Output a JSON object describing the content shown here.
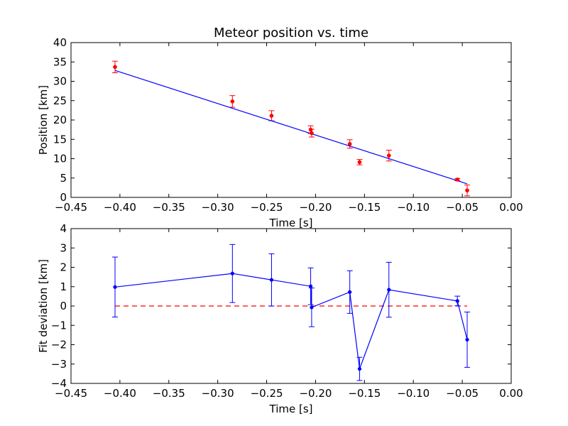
{
  "chart_data": [
    {
      "type": "scatter",
      "title": "Meteor position vs. time",
      "xlabel": "Time [s]",
      "ylabel": "Position [km]",
      "xlim": [
        -0.45,
        0.0
      ],
      "ylim": [
        0,
        40
      ],
      "xticks": [
        "−0.45",
        "−0.40",
        "−0.35",
        "−0.30",
        "−0.25",
        "−0.20",
        "−0.15",
        "−0.10",
        "−0.05",
        "0.00"
      ],
      "yticks": [
        "0",
        "5",
        "10",
        "15",
        "20",
        "25",
        "30",
        "35",
        "40"
      ],
      "points": {
        "x": [
          -0.405,
          -0.285,
          -0.245,
          -0.205,
          -0.204,
          -0.165,
          -0.155,
          -0.125,
          -0.055,
          -0.045
        ],
        "y": [
          33.7,
          24.8,
          21.1,
          17.5,
          16.6,
          13.8,
          9.1,
          10.8,
          4.6,
          1.8
        ],
        "err": [
          1.5,
          1.5,
          1.3,
          1.0,
          1.0,
          1.1,
          0.7,
          1.4,
          0.3,
          1.4
        ],
        "color": "#ff0000"
      },
      "fit": {
        "x": [
          -0.405,
          -0.045
        ],
        "y": [
          32.8,
          3.5
        ],
        "color": "#0000ff"
      }
    },
    {
      "type": "line",
      "xlabel": "Time [s]",
      "ylabel": "Fit deviation [km]",
      "xlim": [
        -0.45,
        0.0
      ],
      "ylim": [
        -4,
        4
      ],
      "xticks": [
        "−0.45",
        "−0.40",
        "−0.35",
        "−0.30",
        "−0.25",
        "−0.20",
        "−0.15",
        "−0.10",
        "−0.05",
        "0.00"
      ],
      "yticks": [
        "−4",
        "−3",
        "−2",
        "−1",
        "0",
        "1",
        "2",
        "3",
        "4"
      ],
      "series": [
        {
          "x": [
            -0.405,
            -0.285,
            -0.245,
            -0.205,
            -0.204,
            -0.165,
            -0.155,
            -0.125,
            -0.055,
            -0.045
          ],
          "y": [
            0.98,
            1.68,
            1.35,
            1.02,
            -0.07,
            0.72,
            -3.25,
            0.84,
            0.26,
            -1.74
          ],
          "err": [
            1.55,
            1.5,
            1.35,
            0.95,
            1.0,
            1.1,
            0.6,
            1.42,
            0.25,
            1.43
          ],
          "color": "#0000ff"
        }
      ],
      "reference_line": {
        "y": 0,
        "style": "dashed",
        "color": "#ff0000"
      }
    }
  ]
}
